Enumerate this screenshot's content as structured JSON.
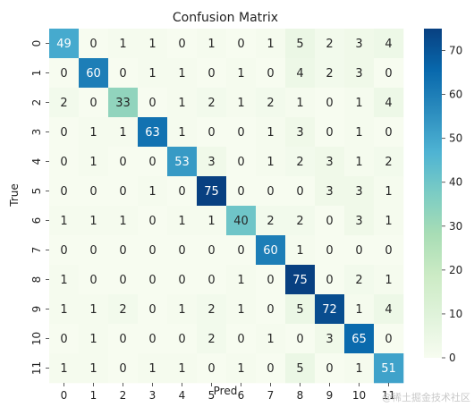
{
  "chart_data": {
    "type": "heatmap",
    "title": "Confusion Matrix",
    "xlabel": "Pred",
    "ylabel": "True",
    "x_categories": [
      "0",
      "1",
      "2",
      "3",
      "4",
      "5",
      "6",
      "7",
      "8",
      "9",
      "10",
      "11"
    ],
    "y_categories": [
      "0",
      "1",
      "2",
      "3",
      "4",
      "5",
      "6",
      "7",
      "8",
      "9",
      "10",
      "11"
    ],
    "matrix": [
      [
        49,
        0,
        1,
        1,
        0,
        1,
        0,
        1,
        5,
        2,
        3,
        4
      ],
      [
        0,
        60,
        0,
        1,
        1,
        0,
        1,
        0,
        4,
        2,
        3,
        0
      ],
      [
        2,
        0,
        33,
        0,
        1,
        2,
        1,
        2,
        1,
        0,
        1,
        4
      ],
      [
        0,
        1,
        1,
        63,
        1,
        0,
        0,
        1,
        3,
        0,
        1,
        0
      ],
      [
        0,
        1,
        0,
        0,
        53,
        3,
        0,
        1,
        2,
        3,
        1,
        2
      ],
      [
        0,
        0,
        0,
        1,
        0,
        75,
        0,
        0,
        0,
        3,
        3,
        1
      ],
      [
        1,
        1,
        1,
        0,
        1,
        1,
        40,
        2,
        2,
        0,
        3,
        1
      ],
      [
        0,
        0,
        0,
        0,
        0,
        0,
        0,
        60,
        1,
        0,
        0,
        0
      ],
      [
        1,
        0,
        0,
        0,
        0,
        0,
        1,
        0,
        75,
        0,
        2,
        1
      ],
      [
        1,
        1,
        2,
        0,
        1,
        2,
        1,
        0,
        5,
        72,
        1,
        4
      ],
      [
        0,
        1,
        0,
        0,
        0,
        2,
        0,
        1,
        0,
        3,
        65,
        0
      ],
      [
        1,
        1,
        0,
        1,
        1,
        0,
        1,
        0,
        5,
        0,
        1,
        51
      ]
    ],
    "colormap": "GnBu",
    "colorbar_range": [
      0,
      75
    ],
    "colorbar_ticks": [
      "0",
      "10",
      "20",
      "30",
      "40",
      "50",
      "60",
      "70"
    ]
  },
  "watermark": "@稀土掘金技术社区"
}
